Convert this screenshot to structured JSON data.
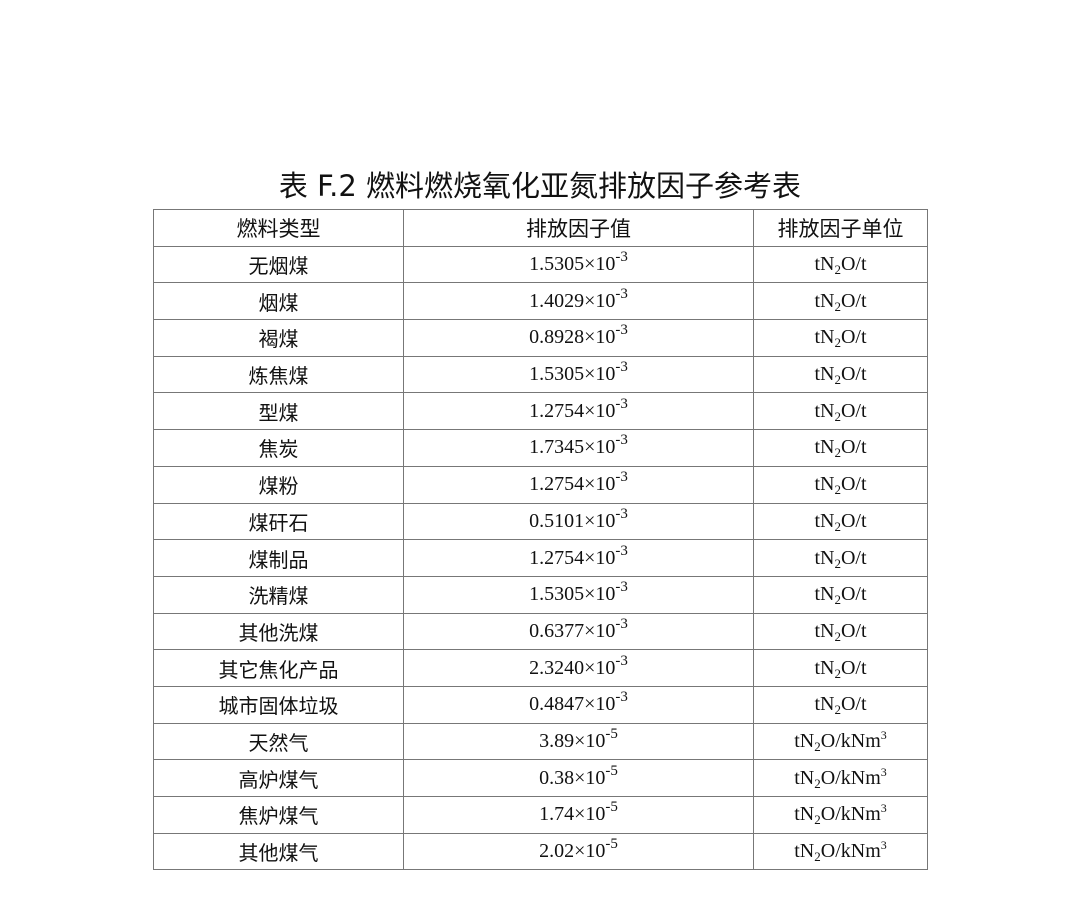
{
  "title": "表 F.2 燃料燃烧氧化亚氮排放因子参考表",
  "table": {
    "headers": [
      "燃料类型",
      "排放因子值",
      "排放因子单位"
    ],
    "times": "×10",
    "rows": [
      {
        "fuel": "无烟煤",
        "mantissa": "1.5305",
        "exp": "-3",
        "unit": {
          "a": "tN",
          "sub": "2",
          "b": "O/t",
          "sup": ""
        }
      },
      {
        "fuel": "烟煤",
        "mantissa": "1.4029",
        "exp": "-3",
        "unit": {
          "a": "tN",
          "sub": "2",
          "b": "O/t",
          "sup": ""
        }
      },
      {
        "fuel": "褐煤",
        "mantissa": "0.8928",
        "exp": "-3",
        "unit": {
          "a": "tN",
          "sub": "2",
          "b": "O/t",
          "sup": ""
        }
      },
      {
        "fuel": "炼焦煤",
        "mantissa": "1.5305",
        "exp": "-3",
        "unit": {
          "a": "tN",
          "sub": "2",
          "b": "O/t",
          "sup": ""
        }
      },
      {
        "fuel": "型煤",
        "mantissa": "1.2754",
        "exp": "-3",
        "unit": {
          "a": "tN",
          "sub": "2",
          "b": "O/t",
          "sup": ""
        }
      },
      {
        "fuel": "焦炭",
        "mantissa": "1.7345",
        "exp": "-3",
        "unit": {
          "a": "tN",
          "sub": "2",
          "b": "O/t",
          "sup": ""
        }
      },
      {
        "fuel": "煤粉",
        "mantissa": "1.2754",
        "exp": "-3",
        "unit": {
          "a": "tN",
          "sub": "2",
          "b": "O/t",
          "sup": ""
        }
      },
      {
        "fuel": "煤矸石",
        "mantissa": "0.5101",
        "exp": "-3",
        "unit": {
          "a": "tN",
          "sub": "2",
          "b": "O/t",
          "sup": ""
        }
      },
      {
        "fuel": "煤制品",
        "mantissa": "1.2754",
        "exp": "-3",
        "unit": {
          "a": "tN",
          "sub": "2",
          "b": "O/t",
          "sup": ""
        }
      },
      {
        "fuel": "洗精煤",
        "mantissa": "1.5305",
        "exp": "-3",
        "unit": {
          "a": "tN",
          "sub": "2",
          "b": "O/t",
          "sup": ""
        }
      },
      {
        "fuel": "其他洗煤",
        "mantissa": "0.6377",
        "exp": "-3",
        "unit": {
          "a": "tN",
          "sub": "2",
          "b": "O/t",
          "sup": ""
        }
      },
      {
        "fuel": "其它焦化产品",
        "mantissa": "2.3240",
        "exp": "-3",
        "unit": {
          "a": "tN",
          "sub": "2",
          "b": "O/t",
          "sup": ""
        }
      },
      {
        "fuel": "城市固体垃圾",
        "mantissa": "0.4847",
        "exp": "-3",
        "unit": {
          "a": "tN",
          "sub": "2",
          "b": "O/t",
          "sup": ""
        }
      },
      {
        "fuel": "天然气",
        "mantissa": "3.89",
        "exp": "-5",
        "unit": {
          "a": "tN",
          "sub": "2",
          "b": "O/kNm",
          "sup": "3"
        }
      },
      {
        "fuel": "高炉煤气",
        "mantissa": "0.38",
        "exp": "-5",
        "unit": {
          "a": "tN",
          "sub": "2",
          "b": "O/kNm",
          "sup": "3"
        }
      },
      {
        "fuel": "焦炉煤气",
        "mantissa": "1.74",
        "exp": "-5",
        "unit": {
          "a": "tN",
          "sub": "2",
          "b": "O/kNm",
          "sup": "3"
        }
      },
      {
        "fuel": "其他煤气",
        "mantissa": "2.02",
        "exp": "-5",
        "unit": {
          "a": "tN",
          "sub": "2",
          "b": "O/kNm",
          "sup": "3"
        }
      }
    ]
  }
}
